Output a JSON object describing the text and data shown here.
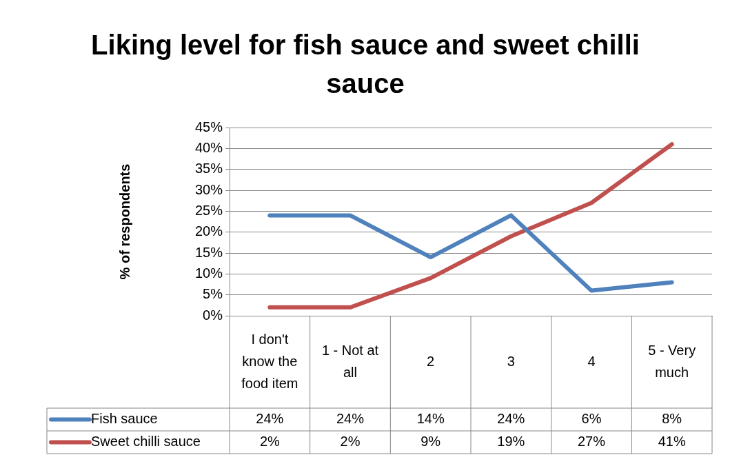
{
  "chart_data": {
    "type": "line",
    "title": "Liking level for fish sauce and sweet chilli sauce",
    "ylabel": "% of respondents",
    "categories": [
      "I don't know the food item",
      "1 - Not at all",
      "2",
      "3",
      "4",
      "5 - Very much"
    ],
    "series": [
      {
        "name": "Fish sauce",
        "color": "#4f81bd",
        "values": [
          24,
          24,
          14,
          24,
          6,
          8
        ],
        "value_labels": [
          "24%",
          "24%",
          "14%",
          "24%",
          "6%",
          "8%"
        ]
      },
      {
        "name": "Sweet chilli sauce",
        "color": "#c0504d",
        "values": [
          2,
          2,
          9,
          19,
          27,
          41
        ],
        "value_labels": [
          "2%",
          "2%",
          "9%",
          "19%",
          "27%",
          "41%"
        ]
      }
    ],
    "ylim": [
      0,
      45
    ],
    "yticks": [
      {
        "value": 0,
        "label": "0%"
      },
      {
        "value": 5,
        "label": "5%"
      },
      {
        "value": 10,
        "label": "10%"
      },
      {
        "value": 15,
        "label": "15%"
      },
      {
        "value": 20,
        "label": "20%"
      },
      {
        "value": 25,
        "label": "25%"
      },
      {
        "value": 30,
        "label": "30%"
      },
      {
        "value": 35,
        "label": "35%"
      },
      {
        "value": 40,
        "label": "40%"
      },
      {
        "value": 45,
        "label": "45%"
      }
    ],
    "grid": "y",
    "legend": "bottom left",
    "marker": "none"
  }
}
